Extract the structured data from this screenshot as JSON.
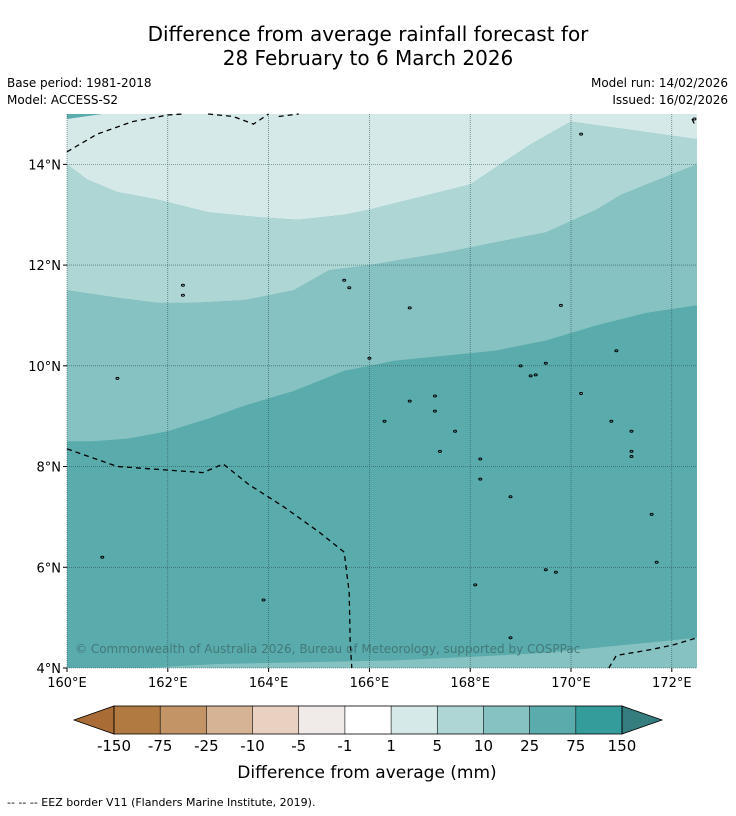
{
  "title": {
    "line1": "Difference from average rainfall forecast for",
    "line2": "28 February to 6 March 2026"
  },
  "meta": {
    "base_period": "Base period: 1981-2018",
    "model": "Model: ACCESS-S2",
    "model_run": "Model run: 14/02/2026",
    "issued": "Issued: 16/02/2026"
  },
  "map": {
    "extent": {
      "lon": [
        160,
        172.5
      ],
      "lat": [
        4,
        15
      ]
    },
    "x_ticks": [
      {
        "lon": 160,
        "label": "160°E"
      },
      {
        "lon": 162,
        "label": "162°E"
      },
      {
        "lon": 164,
        "label": "164°E"
      },
      {
        "lon": 166,
        "label": "166°E"
      },
      {
        "lon": 168,
        "label": "168°E"
      },
      {
        "lon": 170,
        "label": "170°E"
      },
      {
        "lon": 172,
        "label": "172°E"
      }
    ],
    "y_ticks": [
      {
        "lat": 4,
        "label": "4°N"
      },
      {
        "lat": 6,
        "label": "6°N"
      },
      {
        "lat": 8,
        "label": "8°N"
      },
      {
        "lat": 10,
        "label": "10°N"
      },
      {
        "lat": 12,
        "label": "12°N"
      },
      {
        "lat": 14,
        "label": "14°N"
      }
    ],
    "bands": [
      {
        "level": "1 to 5",
        "color": "#d5e9e8",
        "pts": [
          [
            160,
            14.9
          ],
          [
            160.7,
            15
          ],
          [
            172.5,
            15
          ],
          [
            172.5,
            14.5
          ],
          [
            170,
            14.85
          ],
          [
            169.2,
            14.4
          ],
          [
            168,
            13.6
          ],
          [
            167,
            13.35
          ],
          [
            166,
            13.1
          ],
          [
            165.5,
            13.0
          ],
          [
            164.6,
            12.9
          ],
          [
            163.8,
            12.95
          ],
          [
            162.8,
            13.05
          ],
          [
            161.8,
            13.3
          ],
          [
            161,
            13.45
          ],
          [
            160.4,
            13.7
          ],
          [
            160,
            14.0
          ]
        ]
      },
      {
        "level": "5 to 10",
        "color": "#aed6d5",
        "pts": [
          [
            160,
            14.0
          ],
          [
            160.4,
            13.7
          ],
          [
            161,
            13.45
          ],
          [
            161.8,
            13.3
          ],
          [
            162.8,
            13.05
          ],
          [
            163.8,
            12.95
          ],
          [
            164.6,
            12.9
          ],
          [
            165.5,
            13.0
          ],
          [
            166,
            13.1
          ],
          [
            167,
            13.35
          ],
          [
            168,
            13.6
          ],
          [
            169.2,
            14.4
          ],
          [
            170,
            14.85
          ],
          [
            172.5,
            14.5
          ],
          [
            172.5,
            14.0
          ],
          [
            172,
            13.8
          ],
          [
            171,
            13.4
          ],
          [
            170.5,
            13.1
          ],
          [
            169.5,
            12.65
          ],
          [
            168.5,
            12.45
          ],
          [
            167.5,
            12.25
          ],
          [
            166,
            12.0
          ],
          [
            165.2,
            11.9
          ],
          [
            164.5,
            11.5
          ],
          [
            163.5,
            11.3
          ],
          [
            162.5,
            11.25
          ],
          [
            161.8,
            11.25
          ],
          [
            161,
            11.35
          ],
          [
            160,
            11.5
          ]
        ]
      },
      {
        "level": "10 to 25",
        "color": "#86c2c1",
        "pts": [
          [
            160,
            11.5
          ],
          [
            161,
            11.35
          ],
          [
            161.8,
            11.25
          ],
          [
            162.5,
            11.25
          ],
          [
            163.5,
            11.3
          ],
          [
            164.5,
            11.5
          ],
          [
            165.2,
            11.9
          ],
          [
            166,
            12.0
          ],
          [
            167.5,
            12.25
          ],
          [
            168.5,
            12.45
          ],
          [
            169.5,
            12.65
          ],
          [
            170.5,
            13.1
          ],
          [
            171,
            13.4
          ],
          [
            172,
            13.8
          ],
          [
            172.5,
            14.0
          ],
          [
            172.5,
            11.2
          ],
          [
            171.5,
            11.05
          ],
          [
            170.5,
            10.8
          ],
          [
            169.5,
            10.5
          ],
          [
            168.5,
            10.3
          ],
          [
            167.5,
            10.2
          ],
          [
            166.5,
            10.1
          ],
          [
            165.5,
            9.9
          ],
          [
            164.5,
            9.5
          ],
          [
            163.5,
            9.2
          ],
          [
            162.8,
            8.95
          ],
          [
            162,
            8.7
          ],
          [
            161.2,
            8.55
          ],
          [
            160.5,
            8.5
          ],
          [
            160,
            8.5
          ]
        ]
      },
      {
        "level": "25 to 75",
        "color": "#5aabac",
        "pts": [
          [
            160,
            8.5
          ],
          [
            160.5,
            8.5
          ],
          [
            161.2,
            8.55
          ],
          [
            162,
            8.7
          ],
          [
            162.8,
            8.95
          ],
          [
            163.5,
            9.2
          ],
          [
            164.5,
            9.5
          ],
          [
            165.5,
            9.9
          ],
          [
            166.5,
            10.1
          ],
          [
            167.5,
            10.2
          ],
          [
            168.5,
            10.3
          ],
          [
            169.5,
            10.5
          ],
          [
            170.5,
            10.8
          ],
          [
            171.5,
            11.05
          ],
          [
            172.5,
            11.2
          ],
          [
            172.5,
            4.65
          ],
          [
            171,
            4.55
          ],
          [
            169.5,
            4.45
          ],
          [
            168,
            4.35
          ],
          [
            166.5,
            4.3
          ],
          [
            165,
            4.25
          ],
          [
            163,
            4.15
          ],
          [
            161.5,
            4.05
          ],
          [
            160.5,
            4.0
          ],
          [
            160,
            4.0
          ]
        ]
      },
      {
        "level": "10 to 25",
        "color": "#86c2c1",
        "pts": [
          [
            161.5,
            4.0
          ],
          [
            163,
            4.08
          ],
          [
            165,
            4.12
          ],
          [
            166.5,
            4.15
          ],
          [
            168,
            4.22
          ],
          [
            169.5,
            4.3
          ],
          [
            171,
            4.45
          ],
          [
            172.5,
            4.6
          ],
          [
            172.5,
            4.0
          ]
        ]
      }
    ],
    "eez_borders": [
      [
        [
          160,
          14.25
        ],
        [
          160.6,
          14.6
        ],
        [
          161.3,
          14.85
        ],
        [
          162,
          14.98
        ],
        [
          162.3,
          15
        ]
      ],
      [
        [
          162.8,
          15
        ],
        [
          163.3,
          14.95
        ],
        [
          163.7,
          14.8
        ],
        [
          164,
          15
        ]
      ],
      [
        [
          164.2,
          14.95
        ],
        [
          164.6,
          15
        ]
      ],
      [
        [
          172.4,
          14.9
        ],
        [
          172.45,
          14.8
        ]
      ],
      [
        [
          160,
          8.35
        ],
        [
          161,
          8.0
        ],
        [
          162.7,
          7.88
        ],
        [
          163.1,
          8.05
        ],
        [
          163.6,
          7.65
        ],
        [
          164.3,
          7.2
        ],
        [
          165,
          6.7
        ],
        [
          165.5,
          6.3
        ],
        [
          165.6,
          5.5
        ],
        [
          165.62,
          4.5
        ],
        [
          165.65,
          4.0
        ]
      ],
      [
        [
          170.75,
          4.0
        ],
        [
          170.9,
          4.25
        ],
        [
          171.5,
          4.35
        ],
        [
          172,
          4.45
        ],
        [
          172.5,
          4.6
        ]
      ]
    ],
    "islands": [
      [
        162.3,
        11.6
      ],
      [
        162.3,
        11.4
      ],
      [
        163.9,
        5.35
      ],
      [
        160.7,
        6.2
      ],
      [
        161,
        9.75
      ],
      [
        165.5,
        11.7
      ],
      [
        165.6,
        11.55
      ],
      [
        166.8,
        11.15
      ],
      [
        166,
        10.15
      ],
      [
        169.8,
        11.2
      ],
      [
        169,
        10.0
      ],
      [
        169.5,
        10.05
      ],
      [
        169.2,
        9.8
      ],
      [
        169.3,
        9.82
      ],
      [
        170.9,
        10.3
      ],
      [
        170.2,
        9.45
      ],
      [
        170.8,
        8.9
      ],
      [
        171.2,
        8.7
      ],
      [
        171.2,
        8.3
      ],
      [
        171.2,
        8.2
      ],
      [
        167.3,
        9.4
      ],
      [
        166.8,
        9.3
      ],
      [
        167.3,
        9.1
      ],
      [
        167.7,
        8.7
      ],
      [
        166.3,
        8.9
      ],
      [
        167.4,
        8.3
      ],
      [
        168.2,
        8.15
      ],
      [
        168.2,
        7.75
      ],
      [
        168.8,
        7.4
      ],
      [
        169.7,
        5.9
      ],
      [
        169.5,
        5.95
      ],
      [
        168.1,
        5.65
      ],
      [
        168.8,
        4.6
      ],
      [
        171.6,
        7.05
      ],
      [
        170.2,
        14.6
      ],
      [
        172.45,
        14.9
      ],
      [
        171.7,
        6.1
      ]
    ]
  },
  "copyright": "© Commonwealth of Australia 2026, Bureau of Meteorology, supported by COSPPac",
  "colorbar": {
    "colors": [
      "#a96c36",
      "#b07a41",
      "#c29466",
      "#d5b394",
      "#e9d1c1",
      "#f0ebe8",
      "#ffffff",
      "#d5e9e8",
      "#aed6d5",
      "#86c2c1",
      "#5aabac",
      "#359c9c",
      "#357d7e"
    ],
    "tick_labels": [
      "-150",
      "-75",
      "-25",
      "-10",
      "-5",
      "-1",
      "1",
      "5",
      "10",
      "25",
      "75",
      "150"
    ],
    "label": "Difference from average (mm)"
  },
  "footnote": "--  --  -- EEZ border V11 (Flanders Marine Institute, 2019)."
}
